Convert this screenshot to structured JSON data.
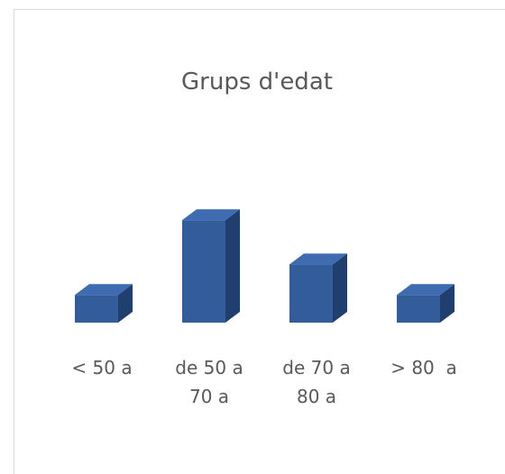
{
  "chart_data": {
    "type": "bar3d",
    "title": "Grups d'edat",
    "categories": [
      "< 50 a",
      "de 50 a 70 a",
      "de 70 a 80 a",
      "> 80  a"
    ],
    "values": [
      10,
      37,
      21,
      10
    ],
    "ylim": [
      0,
      40
    ],
    "colors": {
      "front": "#335c9a",
      "top": "#3f6cb1",
      "side": "#213f6e"
    }
  }
}
